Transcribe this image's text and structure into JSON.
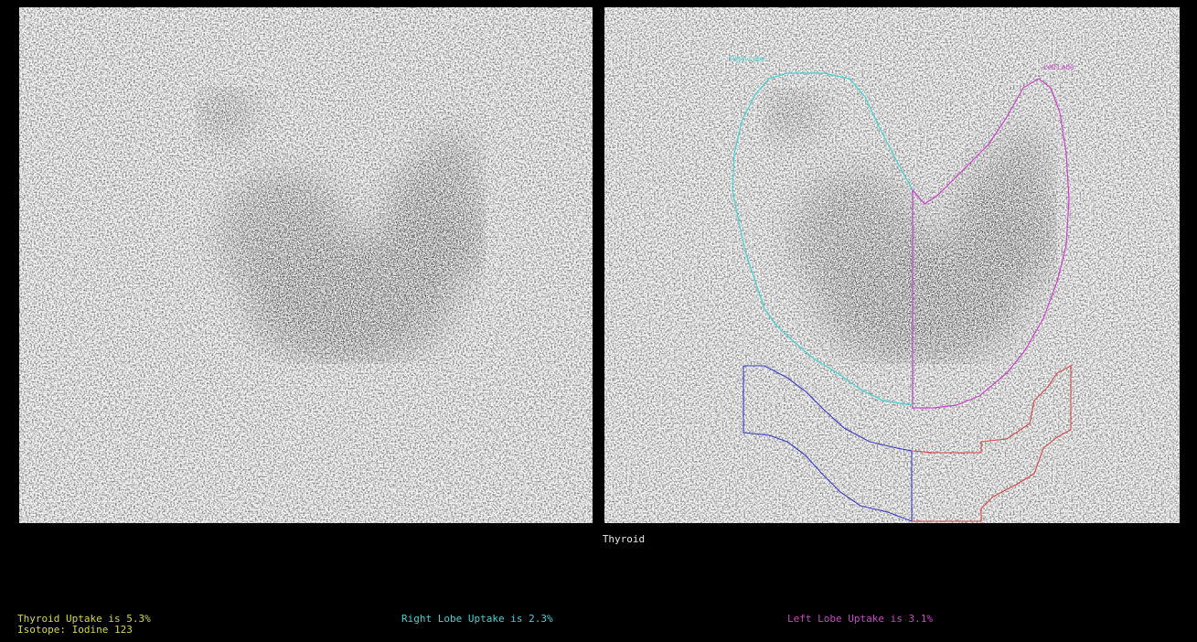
{
  "study": {
    "caption": "Thyroid"
  },
  "roi_labels": {
    "right_lobe": "Right Lobe",
    "left_lobe": "Left Lobe"
  },
  "stats": {
    "thyroid_uptake": "Thyroid Uptake is 5.3%",
    "isotope": "Isotope: Iodine 123",
    "right_lobe_uptake": "Right Lobe Uptake is 2.3%",
    "left_lobe_uptake": "Left Lobe Uptake is 3.1%"
  },
  "colors": {
    "background": "#000000",
    "scan_background": "#f7f7f7",
    "thyroid_text": "#d8d84a",
    "right_lobe": "#43d3d3",
    "left_lobe": "#cc44cc",
    "background_roi_right": "#3b3bc8",
    "background_roi_left": "#d24a4a",
    "caption_text": "#e6e6e6"
  }
}
